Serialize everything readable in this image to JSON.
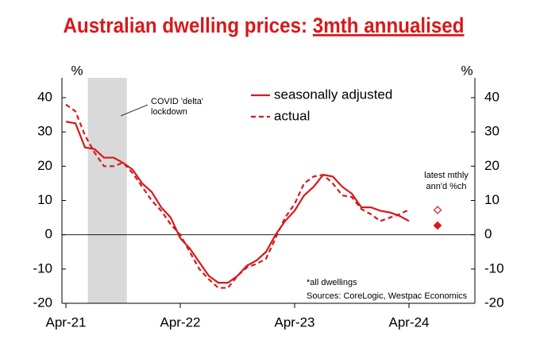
{
  "chart_data": {
    "type": "line",
    "title": "Australian dwelling prices: ",
    "title_underlined": "3mth annualised",
    "y_unit_left": "%",
    "y_unit_right": "%",
    "categories": [
      "Apr-21",
      null,
      null,
      null,
      null,
      null,
      null,
      null,
      null,
      null,
      null,
      null,
      "Apr-22",
      null,
      null,
      null,
      null,
      null,
      null,
      null,
      null,
      null,
      null,
      null,
      "Apr-23",
      null,
      null,
      null,
      null,
      null,
      null,
      null,
      null,
      null,
      null,
      null,
      "Apr-24"
    ],
    "series": [
      {
        "name": "seasonally adjusted",
        "color": "#d7191c",
        "dash": false,
        "values": [
          33,
          32.5,
          25.5,
          25,
          22.5,
          22.5,
          21,
          19,
          15,
          12.5,
          8,
          5,
          -1,
          -4,
          -8,
          -12,
          -14,
          -14,
          -12,
          -9,
          -7.5,
          -5,
          0,
          4,
          7,
          11.5,
          14,
          17.5,
          17,
          14,
          12,
          8,
          8,
          7,
          6.5,
          5.5,
          4
        ],
        "latest": 2.7
      },
      {
        "name": "actual",
        "color": "#d7191c",
        "dash": true,
        "values": [
          38,
          36,
          29,
          24,
          20,
          20,
          21,
          18,
          14,
          10,
          7,
          3,
          0,
          -5,
          -10,
          -13,
          -15.5,
          -15.5,
          -12,
          -9.5,
          -8.5,
          -7,
          -1,
          5,
          9,
          15,
          17,
          17.5,
          15,
          11.5,
          11,
          7.5,
          6,
          4,
          5,
          6,
          7.3
        ],
        "latest": 7.2
      }
    ],
    "latest_x": 39,
    "latest_label": [
      "latest mthly",
      "ann'd %ch"
    ],
    "shade_x": [
      2.3,
      6.4
    ],
    "shade_label": [
      "COVID 'delta'",
      "lockdown"
    ],
    "footnotes": [
      "*all dwellings",
      "Sources: CoreLogic, Westpac Economics"
    ],
    "ylim": [
      -20,
      40
    ],
    "yticks": [
      -20,
      -10,
      0,
      10,
      20,
      30,
      40
    ],
    "zero_line": true
  }
}
